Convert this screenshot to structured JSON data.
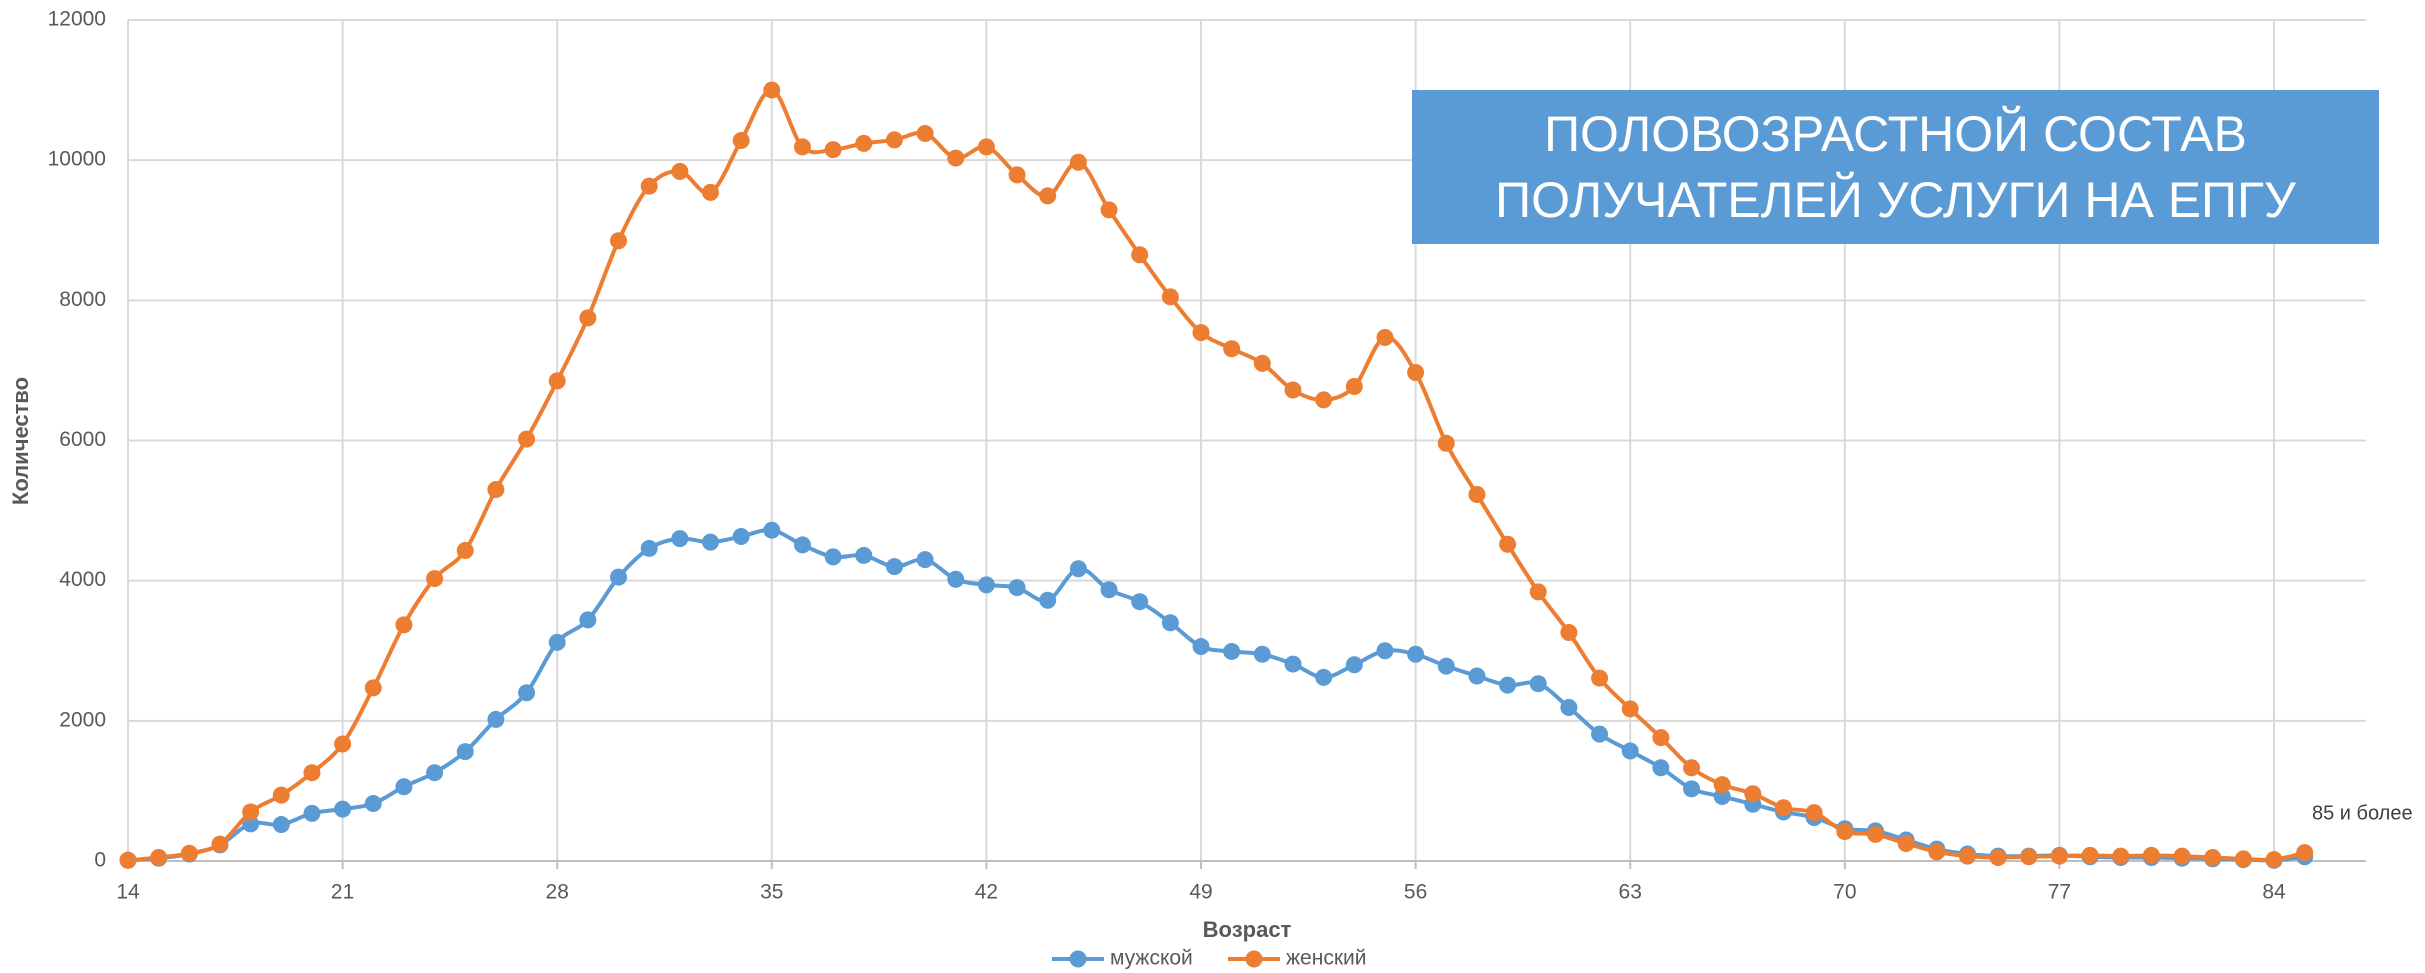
{
  "chart_data": {
    "type": "line",
    "title": "ПОЛОВОЗРАСТНОЙ СОСТАВ ПОЛУЧАТЕЛЕЙ УСЛУГИ НА ЕПГУ",
    "x_label": "Возраст",
    "y_label": "Количество",
    "annotation": "85 и более",
    "x": [
      14,
      15,
      16,
      17,
      18,
      19,
      20,
      21,
      22,
      23,
      24,
      25,
      26,
      27,
      28,
      29,
      30,
      31,
      32,
      33,
      34,
      35,
      36,
      37,
      38,
      39,
      40,
      41,
      42,
      43,
      44,
      45,
      46,
      47,
      48,
      49,
      50,
      51,
      52,
      53,
      54,
      55,
      56,
      57,
      58,
      59,
      60,
      61,
      62,
      63,
      64,
      65,
      66,
      67,
      68,
      69,
      70,
      71,
      72,
      73,
      74,
      75,
      76,
      77,
      78,
      79,
      80,
      81,
      82,
      83,
      84,
      85
    ],
    "series": [
      {
        "name": "мужской",
        "color": "#5b9bd5",
        "values": [
          10,
          40,
          100,
          230,
          530,
          520,
          680,
          740,
          820,
          1060,
          1260,
          1560,
          2020,
          2400,
          3120,
          3440,
          4050,
          4460,
          4600,
          4550,
          4630,
          4720,
          4510,
          4340,
          4360,
          4200,
          4300,
          4020,
          3940,
          3900,
          3720,
          4170,
          3870,
          3700,
          3400,
          3060,
          2990,
          2950,
          2810,
          2620,
          2800,
          3000,
          2950,
          2780,
          2640,
          2510,
          2530,
          2190,
          1810,
          1570,
          1330,
          1030,
          920,
          810,
          700,
          620,
          460,
          430,
          300,
          170,
          100,
          70,
          70,
          80,
          60,
          50,
          50,
          40,
          30,
          20,
          10,
          60
        ]
      },
      {
        "name": "женский",
        "color": "#ed7d31",
        "values": [
          10,
          50,
          110,
          240,
          700,
          940,
          1260,
          1670,
          2470,
          3370,
          4030,
          4430,
          5300,
          6020,
          6850,
          7750,
          8850,
          9630,
          9840,
          9540,
          10280,
          11000,
          10190,
          10150,
          10240,
          10290,
          10380,
          10030,
          10190,
          9790,
          9490,
          9970,
          9290,
          8650,
          8050,
          7540,
          7310,
          7100,
          6720,
          6580,
          6770,
          7470,
          6970,
          5960,
          5230,
          4520,
          3840,
          3260,
          2610,
          2170,
          1760,
          1330,
          1090,
          960,
          760,
          690,
          420,
          380,
          250,
          130,
          70,
          50,
          60,
          70,
          80,
          70,
          80,
          70,
          50,
          30,
          20,
          120
        ]
      }
    ],
    "xlim": [
      14,
      87
    ],
    "xticks": [
      14,
      21,
      28,
      35,
      42,
      49,
      56,
      63,
      70,
      77,
      84
    ],
    "ylim": [
      0,
      12000
    ],
    "yticks": [
      0,
      2000,
      4000,
      6000,
      8000,
      10000,
      12000
    ],
    "grid": true,
    "legend": "bottom",
    "title_color": "#5b9bd5"
  }
}
